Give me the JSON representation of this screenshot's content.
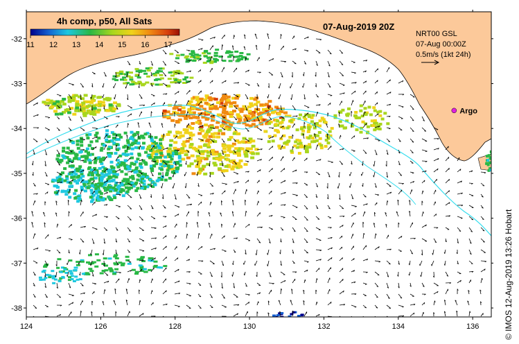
{
  "map": {
    "title": "07-Aug-2019 20Z",
    "colorbar": {
      "label": "4h comp, p50, All Sats",
      "ticks": [
        "11",
        "12",
        "13",
        "14",
        "15",
        "16",
        "17"
      ],
      "min": 11,
      "max": 17.5
    },
    "current_legend": {
      "line1": "NRT00 GSL",
      "line2": "07-Aug 00:00Z",
      "line3": "0.5m/s (1kt 24h)"
    },
    "argo": {
      "label": "Argo",
      "lon": 135.5,
      "lat": -33.6,
      "color": "#e020e0"
    },
    "x_ticks": [
      "124",
      "126",
      "128",
      "130",
      "132",
      "134",
      "136"
    ],
    "y_ticks": [
      "-32",
      "-33",
      "-34",
      "-35",
      "-36",
      "-37",
      "-38"
    ],
    "lon_range": [
      124,
      136.5
    ],
    "lat_range": [
      -38.2,
      -31.4
    ],
    "credit": "© IMOS 12-Aug-2019 13:26 Hobart",
    "colors": {
      "land": "#fcc99a",
      "ocean": "#ffffff",
      "contour": "#33ddee"
    }
  }
}
